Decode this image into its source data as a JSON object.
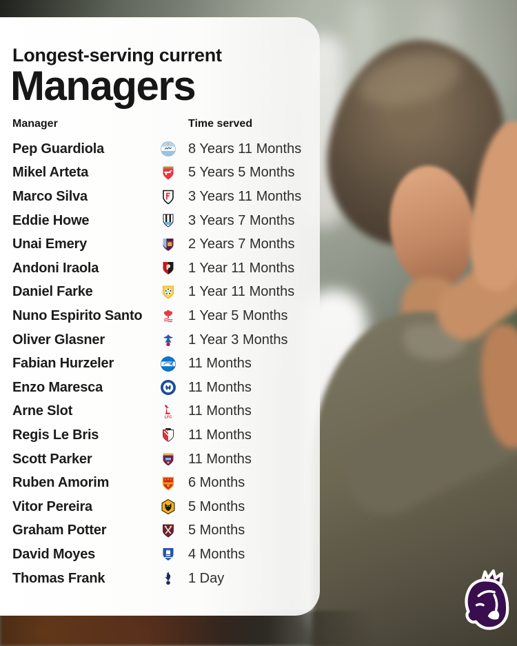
{
  "header": {
    "subtitle": "Longest-serving current",
    "title": "Managers"
  },
  "table": {
    "col_manager": "Manager",
    "col_time": "Time served",
    "rows": [
      {
        "manager": "Pep Guardiola",
        "crest": "man-city-crest-icon",
        "club": "Manchester City",
        "time": "8 Years 11 Months"
      },
      {
        "manager": "Mikel Arteta",
        "crest": "arsenal-crest-icon",
        "club": "Arsenal",
        "time": "5 Years 5 Months"
      },
      {
        "manager": "Marco Silva",
        "crest": "fulham-crest-icon",
        "club": "Fulham",
        "time": "3 Years 11 Months"
      },
      {
        "manager": "Eddie Howe",
        "crest": "newcastle-crest-icon",
        "club": "Newcastle United",
        "time": "3 Years 7 Months"
      },
      {
        "manager": "Unai Emery",
        "crest": "aston-villa-crest-icon",
        "club": "Aston Villa",
        "time": "2 Years 7 Months"
      },
      {
        "manager": "Andoni Iraola",
        "crest": "bournemouth-crest-icon",
        "club": "AFC Bournemouth",
        "time": "1 Year 11 Months"
      },
      {
        "manager": "Daniel Farke",
        "crest": "leeds-crest-icon",
        "club": "Leeds United",
        "time": "1 Year 11 Months"
      },
      {
        "manager": "Nuno Espirito Santo",
        "crest": "nottingham-forest-crest-icon",
        "club": "Nottingham Forest",
        "time": "1 Year 5 Months"
      },
      {
        "manager": "Oliver Glasner",
        "crest": "crystal-palace-crest-icon",
        "club": "Crystal Palace",
        "time": "1 Year 3 Months"
      },
      {
        "manager": "Fabian Hurzeler",
        "crest": "brighton-crest-icon",
        "club": "Brighton & Hove Albion",
        "time": "11 Months"
      },
      {
        "manager": "Enzo Maresca",
        "crest": "chelsea-crest-icon",
        "club": "Chelsea",
        "time": "11 Months"
      },
      {
        "manager": "Arne Slot",
        "crest": "liverpool-crest-icon",
        "club": "Liverpool",
        "time": "11 Months"
      },
      {
        "manager": "Regis Le Bris",
        "crest": "sunderland-crest-icon",
        "club": "Sunderland",
        "time": "11 Months"
      },
      {
        "manager": "Scott Parker",
        "crest": "burnley-crest-icon",
        "club": "Burnley",
        "time": "11 Months"
      },
      {
        "manager": "Ruben Amorim",
        "crest": "man-united-crest-icon",
        "club": "Manchester United",
        "time": "6 Months"
      },
      {
        "manager": "Vitor Pereira",
        "crest": "wolves-crest-icon",
        "club": "Wolverhampton Wanderers",
        "time": "5 Months"
      },
      {
        "manager": "Graham Potter",
        "crest": "west-ham-crest-icon",
        "club": "West Ham United",
        "time": "5 Months"
      },
      {
        "manager": "David Moyes",
        "crest": "everton-crest-icon",
        "club": "Everton",
        "time": "4 Months"
      },
      {
        "manager": "Thomas Frank",
        "crest": "tottenham-crest-icon",
        "club": "Tottenham Hotspur",
        "time": "1 Day"
      }
    ]
  },
  "branding": {
    "logo_icon": "premier-league-lion-icon",
    "brand_color": "#38003c"
  }
}
